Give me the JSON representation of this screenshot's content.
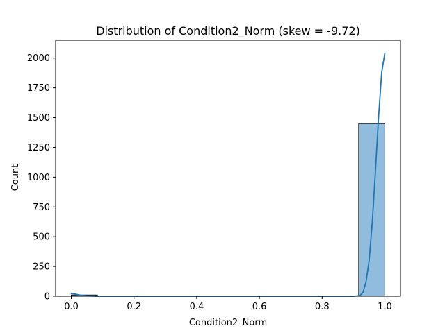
{
  "chart_data": {
    "type": "bar",
    "title": "Distribution of Condition2_Norm (skew = -9.72)",
    "xlabel": "Condition2_Norm",
    "ylabel": "Count",
    "xlim": [
      -0.05,
      1.05
    ],
    "ylim": [
      0,
      2150
    ],
    "x_ticks": [
      0.0,
      0.2,
      0.4,
      0.6,
      0.8,
      1.0
    ],
    "x_tick_labels": [
      "0.0",
      "0.2",
      "0.4",
      "0.6",
      "0.8",
      "1.0"
    ],
    "y_ticks": [
      0,
      250,
      500,
      750,
      1000,
      1250,
      1500,
      1750,
      2000
    ],
    "y_tick_labels": [
      "0",
      "250",
      "500",
      "750",
      "1000",
      "1250",
      "1500",
      "1750",
      "2000"
    ],
    "bins": [
      {
        "start": 0.0,
        "end": 0.0833,
        "count": 10
      },
      {
        "start": 0.0833,
        "end": 0.1667,
        "count": 0
      },
      {
        "start": 0.1667,
        "end": 0.25,
        "count": 0
      },
      {
        "start": 0.25,
        "end": 0.3333,
        "count": 0
      },
      {
        "start": 0.3333,
        "end": 0.4167,
        "count": 0
      },
      {
        "start": 0.4167,
        "end": 0.5,
        "count": 0
      },
      {
        "start": 0.5,
        "end": 0.5833,
        "count": 0
      },
      {
        "start": 0.5833,
        "end": 0.6667,
        "count": 0
      },
      {
        "start": 0.6667,
        "end": 0.75,
        "count": 0
      },
      {
        "start": 0.75,
        "end": 0.8333,
        "count": 0
      },
      {
        "start": 0.8333,
        "end": 0.9167,
        "count": 0
      },
      {
        "start": 0.9167,
        "end": 1.0,
        "count": 1450
      }
    ],
    "kde": {
      "x": [
        0.0,
        0.01,
        0.02,
        0.03,
        0.05,
        0.08,
        0.15,
        0.5,
        0.9,
        0.92,
        0.93,
        0.94,
        0.95,
        0.96,
        0.97,
        0.98,
        0.99,
        1.0
      ],
      "y": [
        22,
        20,
        14,
        8,
        3,
        0,
        0,
        0,
        0,
        5,
        30,
        120,
        300,
        620,
        1050,
        1500,
        1880,
        2040
      ]
    },
    "grid": false,
    "colors": {
      "bar_fill": "#91bcdd",
      "bar_edge": "#000000",
      "kde_line": "#1f77b4"
    }
  }
}
